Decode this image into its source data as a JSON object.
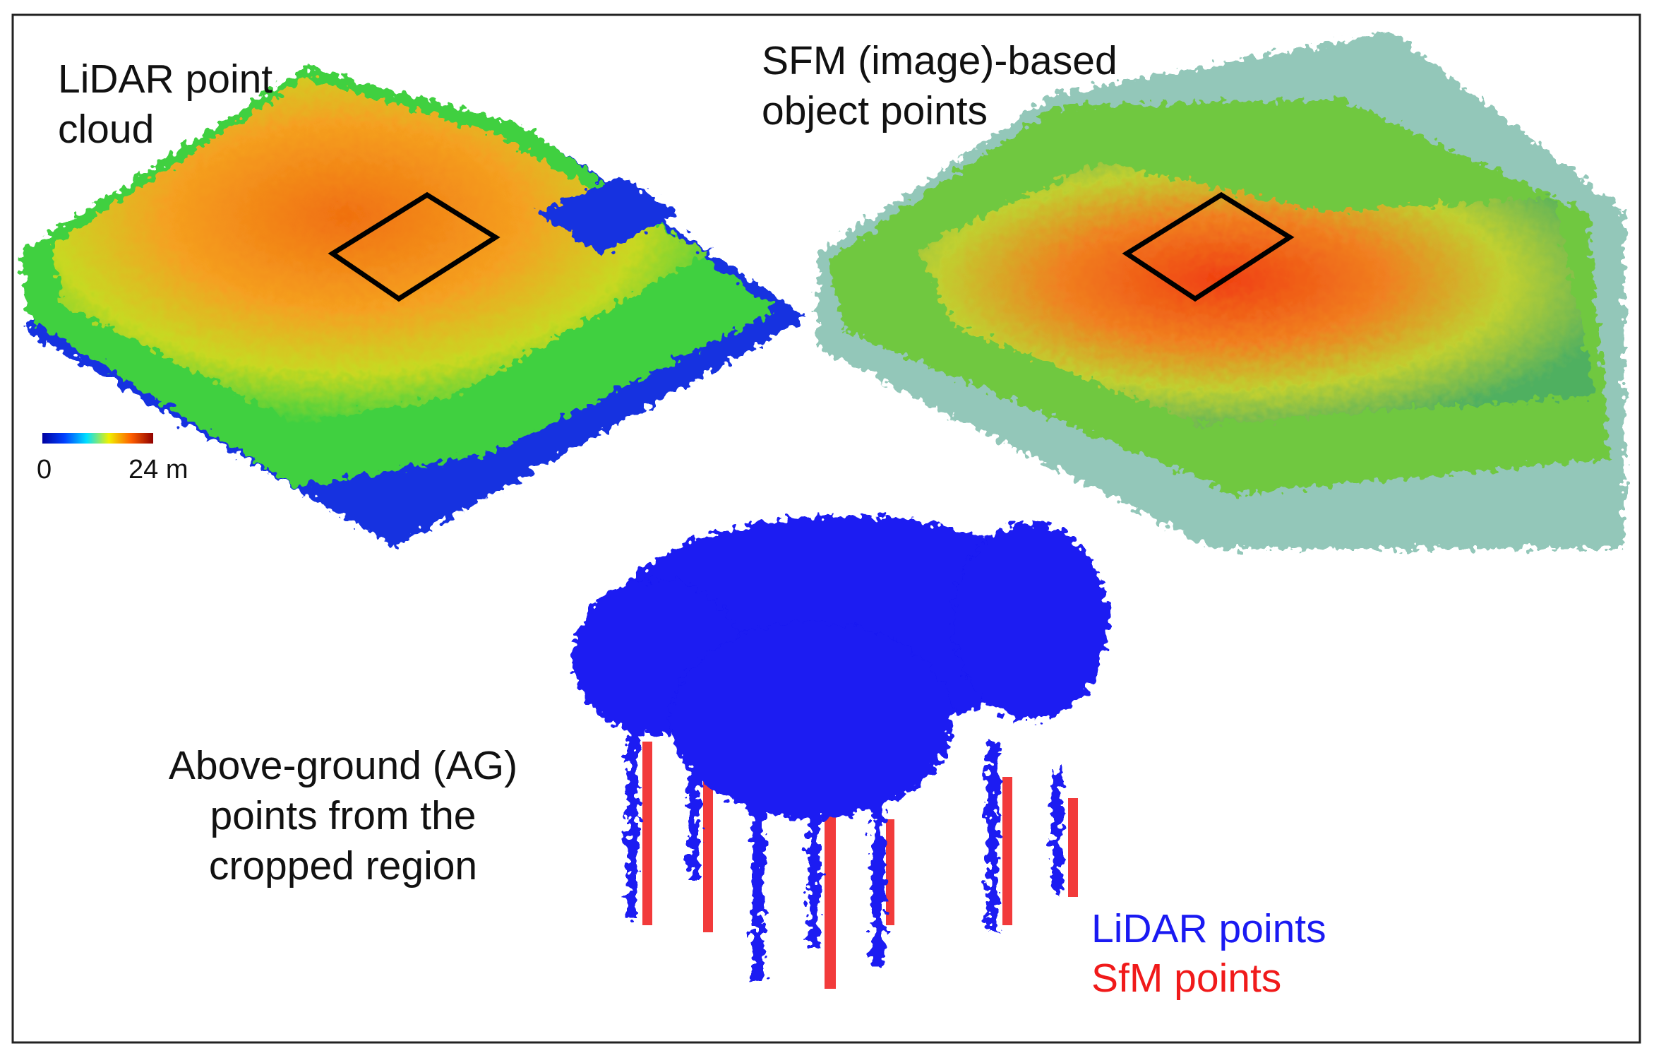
{
  "figure": {
    "lidar": {
      "title_lines": [
        "LiDAR point",
        "cloud"
      ],
      "colorbar": {
        "min_label": "0",
        "max_label": "24 m"
      }
    },
    "sfm": {
      "title_lines": [
        "SFM (image)-based",
        "object points"
      ]
    },
    "ag": {
      "title_lines": [
        "Above-ground (AG)",
        "points from the",
        "cropped region"
      ],
      "legend": [
        {
          "label": "LiDAR points",
          "color": "#1a1af2"
        },
        {
          "label": "SfM points",
          "color": "#f01a1a"
        }
      ]
    }
  }
}
